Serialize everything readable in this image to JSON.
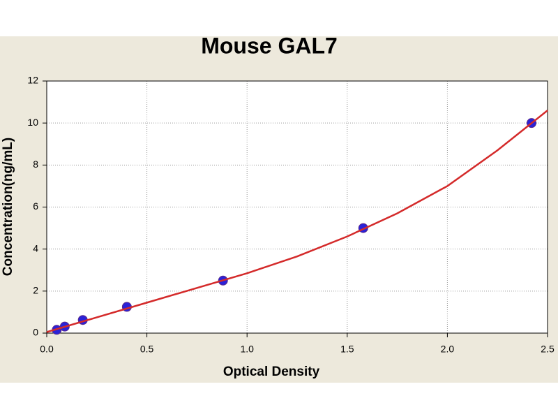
{
  "chart_data": {
    "type": "scatter",
    "title": "Mouse GAL7",
    "x_label": "Optical Density",
    "y_label": "Concentration(ng/mL)",
    "series": [
      {
        "type": "scatter",
        "color": "#2a22d8",
        "x": [
          0.05,
          0.09,
          0.18,
          0.4,
          0.88,
          1.58,
          2.42
        ],
        "values": [
          0.156,
          0.312,
          0.625,
          1.25,
          2.5,
          5,
          10
        ]
      },
      {
        "type": "line",
        "color": "#d42a2a",
        "x": [
          0,
          0.25,
          0.5,
          0.75,
          1,
          1.25,
          1.5,
          1.75,
          2,
          2.25,
          2.5
        ],
        "values": [
          0.05,
          0.75,
          1.45,
          2.15,
          2.85,
          3.65,
          4.6,
          5.7,
          7.0,
          8.7,
          10.6
        ]
      }
    ],
    "xlim": [
      0,
      2.5
    ],
    "ylim": [
      0,
      12
    ],
    "xticks": [
      {
        "value": 0,
        "label": "0.0"
      },
      {
        "value": 0.5,
        "label": "0.5"
      },
      {
        "value": 1,
        "label": "1.0"
      },
      {
        "value": 1.5,
        "label": "1.5"
      },
      {
        "value": 2,
        "label": "2.0"
      },
      {
        "value": 2.5,
        "label": "2.5"
      }
    ],
    "yticks": [
      0,
      2,
      4,
      6,
      8,
      10,
      12
    ],
    "grid": true
  }
}
